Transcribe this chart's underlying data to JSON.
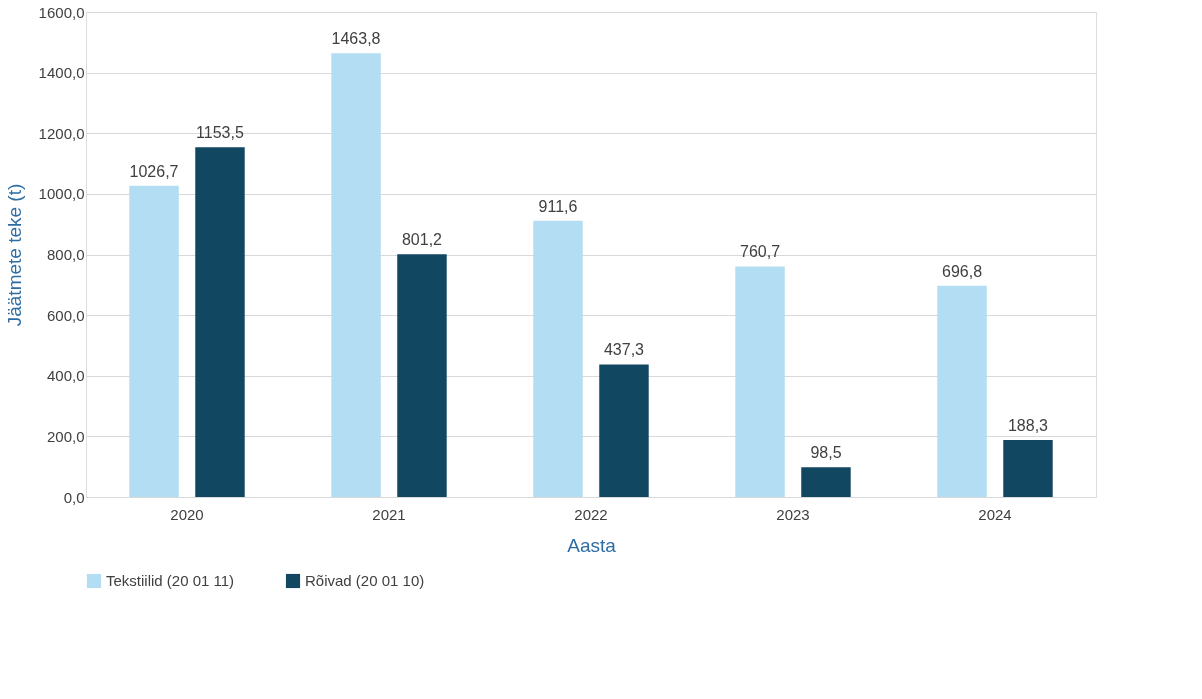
{
  "chart_data": {
    "type": "bar",
    "xlabel": "Aasta",
    "ylabel": "Jäätmete teke (t)",
    "categories": [
      "2020",
      "2021",
      "2022",
      "2023",
      "2024"
    ],
    "series": [
      {
        "name": "Tekstiilid (20 01 11)",
        "color": "#b3ddf2",
        "values": [
          1026.7,
          1463.8,
          911.6,
          760.7,
          696.8
        ],
        "value_labels": [
          "1026,7",
          "1463,8",
          "911,6",
          "760,7",
          "696,8"
        ]
      },
      {
        "name": "Rõivad (20 01 10)",
        "color": "#124762",
        "values": [
          1153.5,
          801.2,
          437.3,
          98.5,
          188.3
        ],
        "value_labels": [
          "1153,5",
          "801,2",
          "437,3",
          "98,5",
          "188,3"
        ]
      }
    ],
    "ylim": [
      0,
      1600
    ],
    "yticks": [
      {
        "value": 0,
        "label": "0,0"
      },
      {
        "value": 200,
        "label": "200,0"
      },
      {
        "value": 400,
        "label": "400,0"
      },
      {
        "value": 600,
        "label": "600,0"
      },
      {
        "value": 800,
        "label": "800,0"
      },
      {
        "value": 1000,
        "label": "1000,0"
      },
      {
        "value": 1200,
        "label": "1200,0"
      },
      {
        "value": 1400,
        "label": "1400,0"
      },
      {
        "value": 1600,
        "label": "1600,0"
      }
    ],
    "grid": "y",
    "legend": "bottom"
  }
}
